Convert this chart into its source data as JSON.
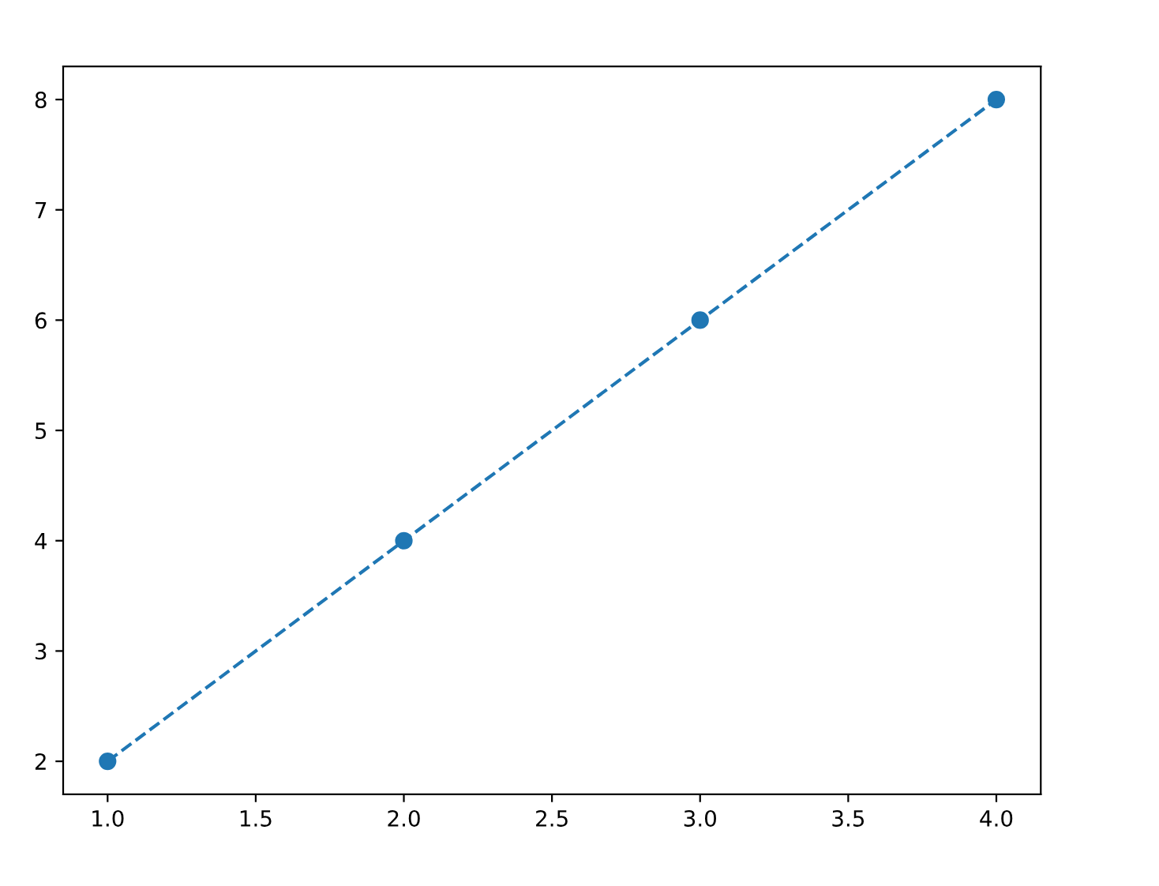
{
  "chart_data": {
    "type": "line",
    "x": [
      1,
      2,
      3,
      4
    ],
    "series": [
      {
        "color": "#1f77b4",
        "values": [
          2,
          4,
          6,
          8
        ]
      }
    ],
    "marker": "circle",
    "line_style": "dashed",
    "xlim": [
      0.85,
      4.15
    ],
    "xticks": [
      {
        "value": 1,
        "label": "1.0"
      },
      {
        "value": 1.5,
        "label": "1.5"
      },
      {
        "value": 2,
        "label": "2.0"
      },
      {
        "value": 2.5,
        "label": "2.5"
      },
      {
        "value": 3,
        "label": "3.0"
      },
      {
        "value": 3.5,
        "label": "3.5"
      },
      {
        "value": 4,
        "label": "4.0"
      }
    ],
    "ylim": [
      1.7,
      8.3
    ],
    "yticks": [
      2,
      3,
      4,
      5,
      6,
      7,
      8
    ],
    "grid": false,
    "legend": false
  }
}
